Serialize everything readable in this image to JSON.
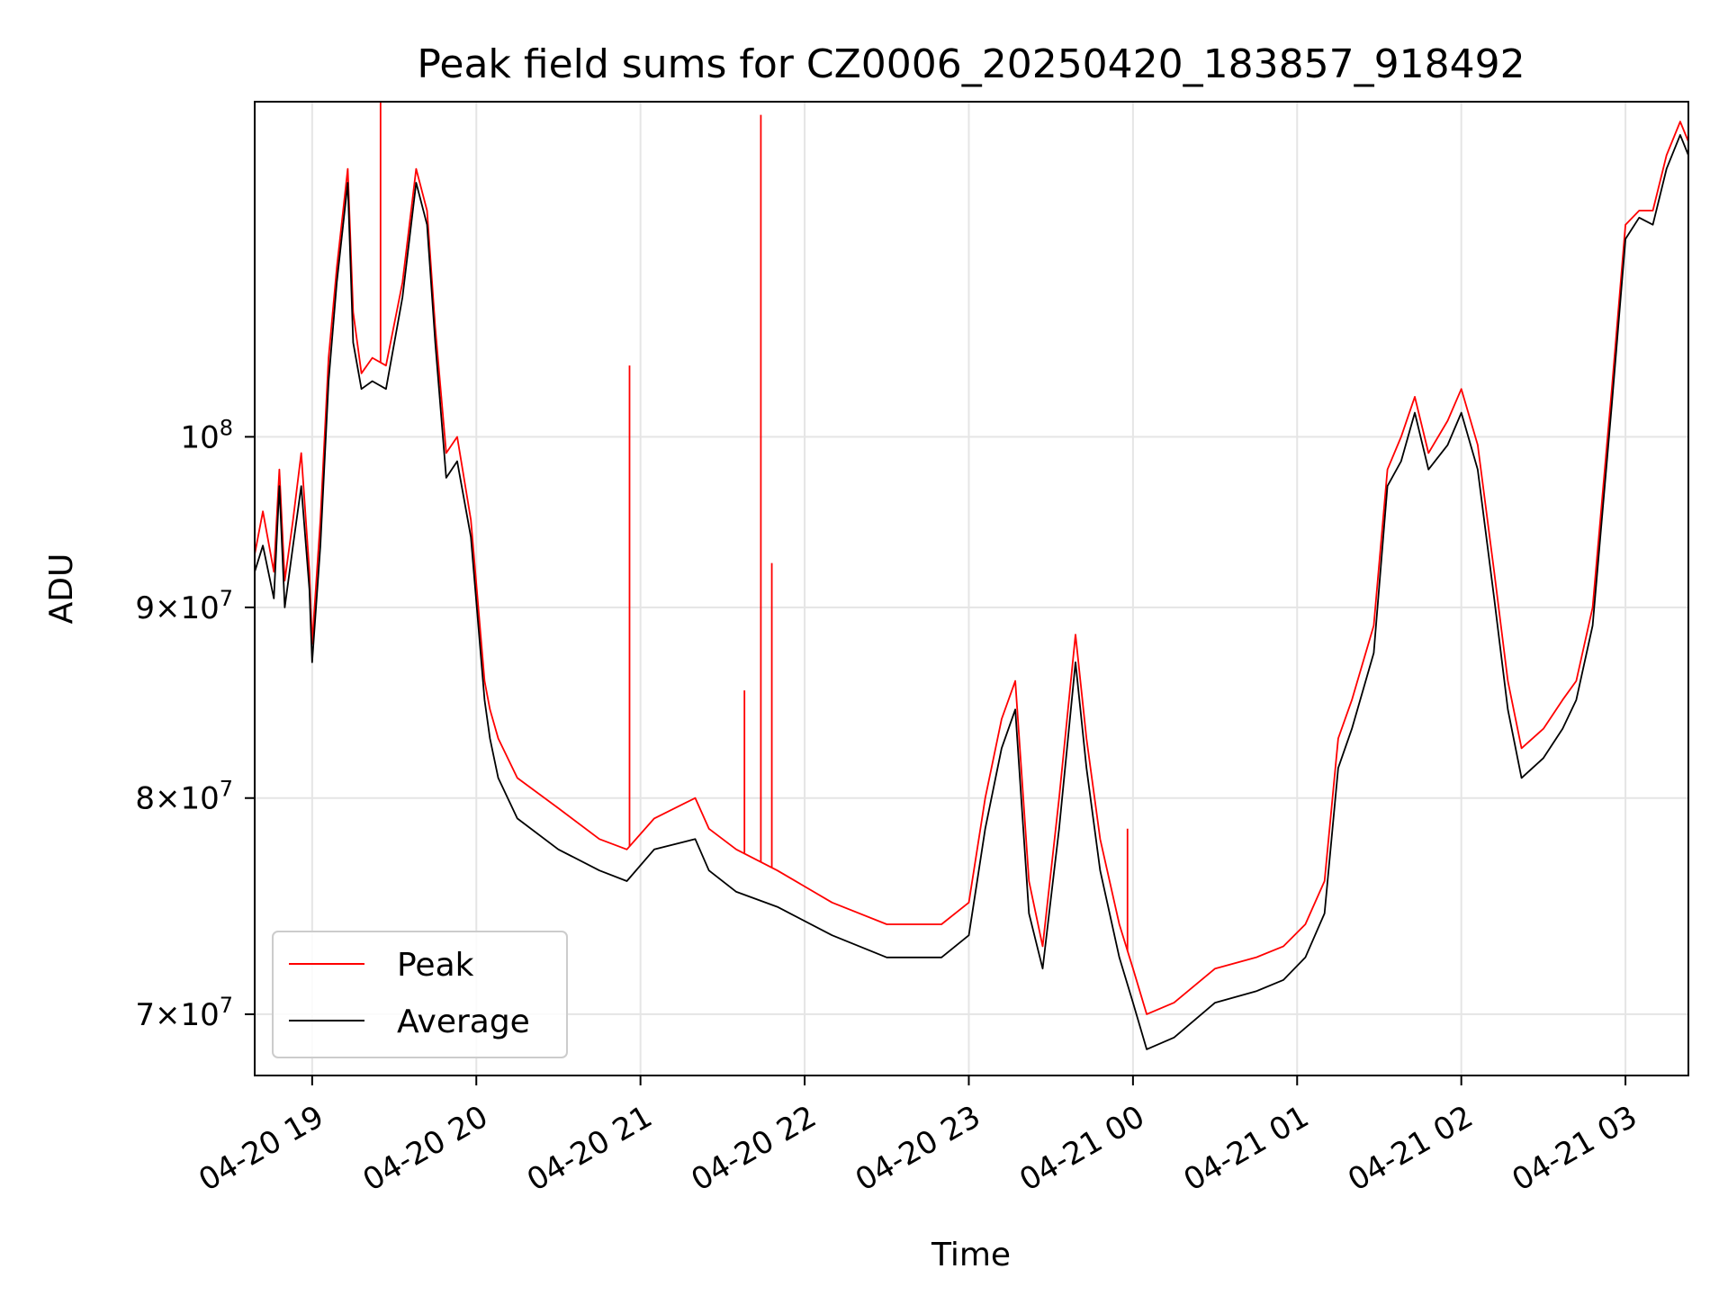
{
  "chart_data": {
    "type": "line",
    "title": "Peak field sums for CZ0006_20250420_183857_918492",
    "xlabel": "Time",
    "ylabel": "ADU",
    "y_scale": "log",
    "xlim": [
      "2025-04-20 18:39",
      "2025-04-21 03:23"
    ],
    "ylim": [
      67400000,
      123000000
    ],
    "grid": true,
    "legend_position": "lower-left",
    "x_tick_labels": [
      "04-20 19",
      "04-20 20",
      "04-20 21",
      "04-20 22",
      "04-20 23",
      "04-21 00",
      "04-21 01",
      "04-21 02",
      "04-21 03"
    ],
    "x_ticks": [
      "2025-04-20 19:00",
      "2025-04-20 20:00",
      "2025-04-20 21:00",
      "2025-04-20 22:00",
      "2025-04-20 23:00",
      "2025-04-21 00:00",
      "2025-04-21 01:00",
      "2025-04-21 02:00",
      "2025-04-21 03:00"
    ],
    "y_ticks": [
      {
        "value": 70000000,
        "mantissa": "7",
        "base": "10",
        "exp": "7"
      },
      {
        "value": 80000000,
        "mantissa": "8",
        "base": "10",
        "exp": "7"
      },
      {
        "value": 90000000,
        "mantissa": "9",
        "base": "10",
        "exp": "7"
      },
      {
        "value": 100000000,
        "mantissa": "",
        "base": "10",
        "exp": "8"
      }
    ],
    "series": [
      {
        "name": "Peak",
        "color": "#ff0000",
        "x": [
          "2025-04-20 18:39",
          "2025-04-20 18:42",
          "2025-04-20 18:46",
          "2025-04-20 18:48",
          "2025-04-20 18:50",
          "2025-04-20 18:53",
          "2025-04-20 18:56",
          "2025-04-20 18:59",
          "2025-04-20 19:00",
          "2025-04-20 19:03",
          "2025-04-20 19:06",
          "2025-04-20 19:09",
          "2025-04-20 19:13",
          "2025-04-20 19:15",
          "2025-04-20 19:18",
          "2025-04-20 19:22",
          "2025-04-20 19:27",
          "2025-04-20 19:33",
          "2025-04-20 19:38",
          "2025-04-20 19:42",
          "2025-04-20 19:45",
          "2025-04-20 19:49",
          "2025-04-20 19:53",
          "2025-04-20 19:58",
          "2025-04-20 20:03",
          "2025-04-20 20:05",
          "2025-04-20 20:08",
          "2025-04-20 20:15",
          "2025-04-20 20:30",
          "2025-04-20 20:45",
          "2025-04-20 20:55",
          "2025-04-20 21:05",
          "2025-04-20 21:20",
          "2025-04-20 21:25",
          "2025-04-20 21:35",
          "2025-04-20 21:50",
          "2025-04-20 22:10",
          "2025-04-20 22:30",
          "2025-04-20 22:50",
          "2025-04-20 23:00",
          "2025-04-20 23:06",
          "2025-04-20 23:12",
          "2025-04-20 23:17",
          "2025-04-20 23:22",
          "2025-04-20 23:27",
          "2025-04-20 23:33",
          "2025-04-20 23:39",
          "2025-04-20 23:43",
          "2025-04-20 23:48",
          "2025-04-20 23:55",
          "2025-04-21 00:00",
          "2025-04-21 00:05",
          "2025-04-21 00:15",
          "2025-04-21 00:30",
          "2025-04-21 00:45",
          "2025-04-21 00:55",
          "2025-04-21 01:03",
          "2025-04-21 01:10",
          "2025-04-21 01:15",
          "2025-04-21 01:20",
          "2025-04-21 01:28",
          "2025-04-21 01:33",
          "2025-04-21 01:38",
          "2025-04-21 01:43",
          "2025-04-21 01:48",
          "2025-04-21 01:55",
          "2025-04-21 02:00",
          "2025-04-21 02:06",
          "2025-04-21 02:12",
          "2025-04-21 02:17",
          "2025-04-21 02:22",
          "2025-04-21 02:30",
          "2025-04-21 02:37",
          "2025-04-21 02:42",
          "2025-04-21 02:48",
          "2025-04-21 02:55",
          "2025-04-21 03:00",
          "2025-04-21 03:05",
          "2025-04-21 03:10",
          "2025-04-21 03:15",
          "2025-04-21 03:20",
          "2025-04-21 03:23"
        ],
        "values": [
          93000000,
          95500000,
          92000000,
          98000000,
          91500000,
          95000000,
          99000000,
          92000000,
          88000000,
          95000000,
          105000000,
          111000000,
          118000000,
          108000000,
          104000000,
          105000000,
          104500000,
          110000000,
          118000000,
          115000000,
          107000000,
          99000000,
          100000000,
          95000000,
          86000000,
          84500000,
          83000000,
          81000000,
          79500000,
          78000000,
          77500000,
          79000000,
          80000000,
          78500000,
          77500000,
          76500000,
          75000000,
          74000000,
          74000000,
          75000000,
          80000000,
          84000000,
          86000000,
          76000000,
          73000000,
          80000000,
          88500000,
          83000000,
          78000000,
          74000000,
          72000000,
          70000000,
          70500000,
          72000000,
          72500000,
          73000000,
          74000000,
          76000000,
          83000000,
          85000000,
          89000000,
          98000000,
          100000000,
          102500000,
          99000000,
          101000000,
          103000000,
          99500000,
          92000000,
          86000000,
          82500000,
          83500000,
          85000000,
          86000000,
          90000000,
          103000000,
          114000000,
          115000000,
          115000000,
          119000000,
          121500000,
          120000000
        ]
      },
      {
        "name": "Average",
        "color": "#000000",
        "x": [
          "2025-04-20 18:39",
          "2025-04-20 18:42",
          "2025-04-20 18:46",
          "2025-04-20 18:48",
          "2025-04-20 18:50",
          "2025-04-20 18:53",
          "2025-04-20 18:56",
          "2025-04-20 18:59",
          "2025-04-20 19:00",
          "2025-04-20 19:03",
          "2025-04-20 19:06",
          "2025-04-20 19:09",
          "2025-04-20 19:13",
          "2025-04-20 19:15",
          "2025-04-20 19:18",
          "2025-04-20 19:22",
          "2025-04-20 19:27",
          "2025-04-20 19:33",
          "2025-04-20 19:38",
          "2025-04-20 19:42",
          "2025-04-20 19:45",
          "2025-04-20 19:49",
          "2025-04-20 19:53",
          "2025-04-20 19:58",
          "2025-04-20 20:03",
          "2025-04-20 20:05",
          "2025-04-20 20:08",
          "2025-04-20 20:15",
          "2025-04-20 20:30",
          "2025-04-20 20:45",
          "2025-04-20 20:55",
          "2025-04-20 21:05",
          "2025-04-20 21:20",
          "2025-04-20 21:25",
          "2025-04-20 21:35",
          "2025-04-20 21:50",
          "2025-04-20 22:10",
          "2025-04-20 22:30",
          "2025-04-20 22:50",
          "2025-04-20 23:00",
          "2025-04-20 23:06",
          "2025-04-20 23:12",
          "2025-04-20 23:17",
          "2025-04-20 23:22",
          "2025-04-20 23:27",
          "2025-04-20 23:33",
          "2025-04-20 23:39",
          "2025-04-20 23:43",
          "2025-04-20 23:48",
          "2025-04-20 23:55",
          "2025-04-21 00:00",
          "2025-04-21 00:05",
          "2025-04-21 00:15",
          "2025-04-21 00:30",
          "2025-04-21 00:45",
          "2025-04-21 00:55",
          "2025-04-21 01:03",
          "2025-04-21 01:10",
          "2025-04-21 01:15",
          "2025-04-21 01:20",
          "2025-04-21 01:28",
          "2025-04-21 01:33",
          "2025-04-21 01:38",
          "2025-04-21 01:43",
          "2025-04-21 01:48",
          "2025-04-21 01:55",
          "2025-04-21 02:00",
          "2025-04-21 02:06",
          "2025-04-21 02:12",
          "2025-04-21 02:17",
          "2025-04-21 02:22",
          "2025-04-21 02:30",
          "2025-04-21 02:37",
          "2025-04-21 02:42",
          "2025-04-21 02:48",
          "2025-04-21 02:55",
          "2025-04-21 03:00",
          "2025-04-21 03:05",
          "2025-04-21 03:10",
          "2025-04-21 03:15",
          "2025-04-21 03:20",
          "2025-04-21 03:23"
        ],
        "values": [
          92000000,
          93500000,
          90500000,
          97000000,
          90000000,
          93500000,
          97000000,
          91000000,
          87000000,
          93500000,
          103500000,
          110000000,
          117000000,
          106000000,
          103000000,
          103500000,
          103000000,
          109000000,
          117000000,
          114000000,
          106000000,
          97500000,
          98500000,
          94000000,
          85000000,
          83000000,
          81000000,
          79000000,
          77500000,
          76500000,
          76000000,
          77500000,
          78000000,
          76500000,
          75500000,
          74800000,
          73500000,
          72500000,
          72500000,
          73500000,
          78500000,
          82500000,
          84500000,
          74500000,
          72000000,
          78500000,
          87000000,
          81500000,
          76500000,
          72500000,
          70500000,
          68500000,
          69000000,
          70500000,
          71000000,
          71500000,
          72500000,
          74500000,
          81500000,
          83500000,
          87500000,
          97000000,
          98500000,
          101500000,
          98000000,
          99500000,
          101500000,
          98000000,
          90500000,
          84500000,
          81000000,
          82000000,
          83500000,
          85000000,
          89000000,
          102000000,
          113000000,
          114500000,
          114000000,
          118000000,
          120500000,
          119000000
        ]
      }
    ],
    "spikes": [
      {
        "series": "Peak",
        "x": "2025-04-20 19:25",
        "value": 123000000
      },
      {
        "series": "Peak",
        "x": "2025-04-20 20:56",
        "value": 104500000
      },
      {
        "series": "Peak",
        "x": "2025-04-20 21:38",
        "value": 85500000
      },
      {
        "series": "Peak",
        "x": "2025-04-20 21:44",
        "value": 122000000
      },
      {
        "series": "Peak",
        "x": "2025-04-20 21:48",
        "value": 92500000
      },
      {
        "series": "Peak",
        "x": "2025-04-20 23:58",
        "value": 78500000
      }
    ]
  }
}
